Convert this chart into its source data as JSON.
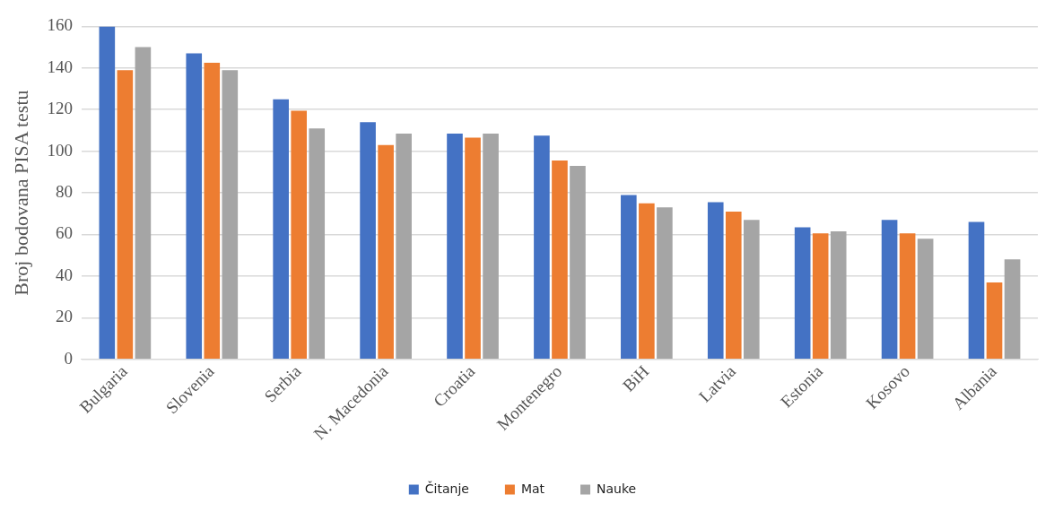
{
  "chart_data": {
    "type": "bar",
    "ylabel": "Broj bodovana PISA testu",
    "categories": [
      "Bulgaria",
      "Slovenia",
      "Serbia",
      "N. Macedonia",
      "Croatia",
      "Montenegro",
      "BiH",
      "Latvia",
      "Estonia",
      "Kosovo",
      "Albania"
    ],
    "series": [
      {
        "name": "Čitanje",
        "color": "#4472c4",
        "values": [
          160,
          147,
          125,
          114,
          108.5,
          107.5,
          79,
          75.5,
          63.5,
          67,
          66
        ]
      },
      {
        "name": "Mat",
        "color": "#ed7d31",
        "values": [
          139,
          142.5,
          119.5,
          103,
          106.5,
          95.5,
          75,
          71,
          60.5,
          60.5,
          37
        ]
      },
      {
        "name": "Nauke",
        "color": "#a5a5a5",
        "values": [
          150,
          139,
          111,
          108.5,
          108.5,
          93,
          73,
          67,
          61.5,
          58,
          48
        ]
      }
    ],
    "ylim": [
      0,
      160
    ],
    "yticks": [
      0,
      20,
      40,
      60,
      80,
      100,
      120,
      140,
      160
    ],
    "grid": "y",
    "legend": "bottom"
  }
}
